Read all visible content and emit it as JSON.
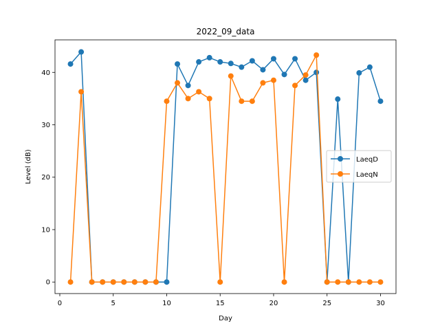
{
  "chart_data": {
    "type": "line",
    "title": "2022_09_data",
    "xlabel": "Day",
    "ylabel": "Level (dB)",
    "xlim": [
      -0.45,
      31.45
    ],
    "ylim": [
      -2.2,
      46.2
    ],
    "xticks": [
      0,
      5,
      10,
      15,
      20,
      25,
      30
    ],
    "yticks": [
      0,
      10,
      20,
      30,
      40
    ],
    "grid": false,
    "legend_position": "center-right",
    "x": [
      1,
      2,
      3,
      4,
      5,
      6,
      7,
      8,
      9,
      10,
      11,
      12,
      13,
      14,
      15,
      16,
      17,
      18,
      19,
      20,
      21,
      22,
      23,
      24,
      25,
      26,
      27,
      28,
      29,
      30
    ],
    "series": [
      {
        "name": "LaeqD",
        "color": "#1f77b4",
        "marker": "circle",
        "values": [
          41.6,
          43.9,
          0,
          0,
          0,
          0,
          0,
          0,
          0,
          0,
          41.6,
          37.5,
          42.0,
          42.8,
          42.0,
          41.7,
          41.0,
          42.2,
          40.5,
          42.6,
          39.6,
          42.6,
          38.5,
          40.0,
          0,
          34.9,
          0,
          39.9,
          41.0,
          34.5
        ]
      },
      {
        "name": "LaeqN",
        "color": "#ff7f0e",
        "marker": "circle",
        "values": [
          0,
          36.3,
          0,
          0,
          0,
          0,
          0,
          0,
          0,
          34.5,
          38.0,
          35.0,
          36.3,
          35.0,
          0,
          39.3,
          34.5,
          34.5,
          38.0,
          38.5,
          0,
          37.5,
          39.5,
          43.3,
          0,
          0,
          0,
          0,
          0,
          0
        ]
      }
    ]
  }
}
